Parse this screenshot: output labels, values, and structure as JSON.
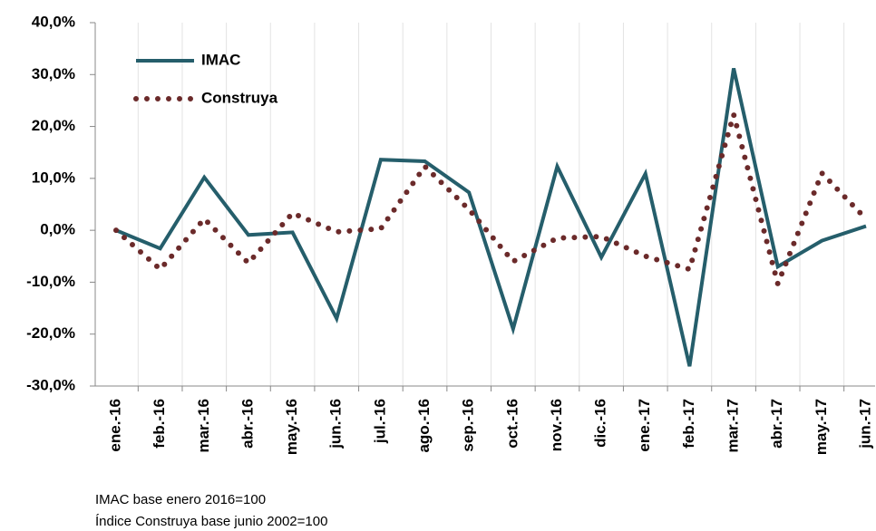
{
  "chart_data": {
    "type": "line",
    "categories": [
      "ene.-16",
      "feb.-16",
      "mar.-16",
      "abr.-16",
      "may.-16",
      "jun.-16",
      "jul.-16",
      "ago.-16",
      "sep.-16",
      "oct.-16",
      "nov.-16",
      "dic.-16",
      "ene.-17",
      "feb.-17",
      "mar.-17",
      "abr.-17",
      "may.-17",
      "jun.-17"
    ],
    "series": [
      {
        "name": "IMAC",
        "color": "#255e6b",
        "style": "solid",
        "values": [
          0,
          -3.5,
          10.2,
          -0.9,
          -0.4,
          -17,
          13.6,
          13.3,
          7.3,
          -19,
          12.3,
          -5.2,
          10.9,
          -26.2,
          31.2,
          -7,
          -2,
          0.8
        ]
      },
      {
        "name": "Construya",
        "color": "#6b2a2a",
        "style": "dotted",
        "values": [
          0,
          -7.5,
          2.2,
          -6.3,
          3.3,
          -0.3,
          0.3,
          12.3,
          4,
          -6,
          -1.5,
          -1.2,
          -5,
          -7.5,
          22.3,
          -10.3,
          11,
          2.2
        ]
      }
    ],
    "ylim": [
      -30,
      40
    ],
    "yticks": [
      {
        "value": -30,
        "label": "-30,0%"
      },
      {
        "value": -20,
        "label": "-20,0%"
      },
      {
        "value": -10,
        "label": "-10,0%"
      },
      {
        "value": 0,
        "label": "0,0%"
      },
      {
        "value": 10,
        "label": "10,0%"
      },
      {
        "value": 20,
        "label": "20,0%"
      },
      {
        "value": 30,
        "label": "30,0%"
      },
      {
        "value": 40,
        "label": "40,0%"
      }
    ],
    "legend": "top-left",
    "notes": [
      "IMAC base enero 2016=100",
      "Índice Construya base junio 2002=100"
    ]
  }
}
